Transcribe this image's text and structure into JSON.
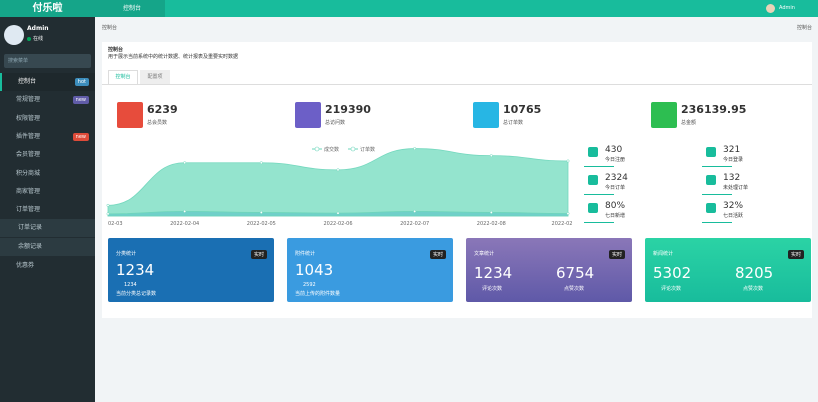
{
  "sidebar": {
    "brand": "付乐啦",
    "user": {
      "name": "Admin",
      "status": "在线"
    },
    "search_placeholder": "搜索菜单",
    "menu": [
      {
        "label": "控制台",
        "badge": "hot"
      },
      {
        "label": "常规管理",
        "badge": "new"
      },
      {
        "label": "权限管理"
      },
      {
        "label": "插件管理",
        "badge": "new"
      },
      {
        "label": "会员管理"
      },
      {
        "label": "积分商城"
      },
      {
        "label": "商家管理"
      },
      {
        "label": "订单管理"
      },
      {
        "label": "订单记录"
      },
      {
        "label": "余额记录"
      },
      {
        "label": "优惠券"
      }
    ]
  },
  "topbar": {
    "tab": "控制台",
    "user": "Admin"
  },
  "breadcrumb": {
    "left": "控制台",
    "right": "控制台"
  },
  "panel": {
    "title": "控制台",
    "description": "用于展示当前系统中的统计数据、统计报表及重要实时数据",
    "tabs": [
      "控制台",
      "配置项"
    ]
  },
  "stats": [
    {
      "value": "6239",
      "label": "总会员数"
    },
    {
      "value": "219390",
      "label": "总访问数"
    },
    {
      "value": "10765",
      "label": "总订单数"
    },
    {
      "value": "236139.95",
      "label": "总金额"
    }
  ],
  "chart_data": {
    "type": "area",
    "categories": [
      "02-03",
      "2022-02-04",
      "2022-02-05",
      "2022-02-06",
      "2022-02-07",
      "2022-02-08",
      "2022-02"
    ],
    "series": [
      {
        "name": "成交数",
        "color": "#8fe3cc",
        "values": [
          300,
          1500,
          1500,
          1300,
          1900,
          1700,
          1550
        ]
      },
      {
        "name": "订单数",
        "color": "#6fcfc9",
        "values": [
          60,
          130,
          100,
          80,
          130,
          100,
          70
        ]
      }
    ],
    "ylim": [
      0,
      2000
    ]
  },
  "mini_stats": [
    {
      "value": "430",
      "label": "今日注册"
    },
    {
      "value": "321",
      "label": "今日登录"
    },
    {
      "value": "2324",
      "label": "今日订单"
    },
    {
      "value": "132",
      "label": "未处理订单"
    },
    {
      "value": "80%",
      "label": "七日新增"
    },
    {
      "value": "32%",
      "label": "七日活跃"
    }
  ],
  "cards": [
    {
      "title": "分类统计",
      "badge": "实时",
      "value": "1234",
      "sub_value": "1234",
      "sub_label": "当前分类总记录数"
    },
    {
      "title": "附件统计",
      "badge": "实时",
      "value": "1043",
      "sub_value": "2592",
      "sub_label": "当前上传的附件数量"
    },
    {
      "title": "文章统计",
      "badge": "实时",
      "items": [
        {
          "value": "1234",
          "label": "评论次数"
        },
        {
          "value": "6754",
          "label": "点赞次数"
        }
      ]
    },
    {
      "title": "新闻统计",
      "badge": "实时",
      "items": [
        {
          "value": "5302",
          "label": "评论次数"
        },
        {
          "value": "8205",
          "label": "点赞次数"
        }
      ]
    }
  ]
}
